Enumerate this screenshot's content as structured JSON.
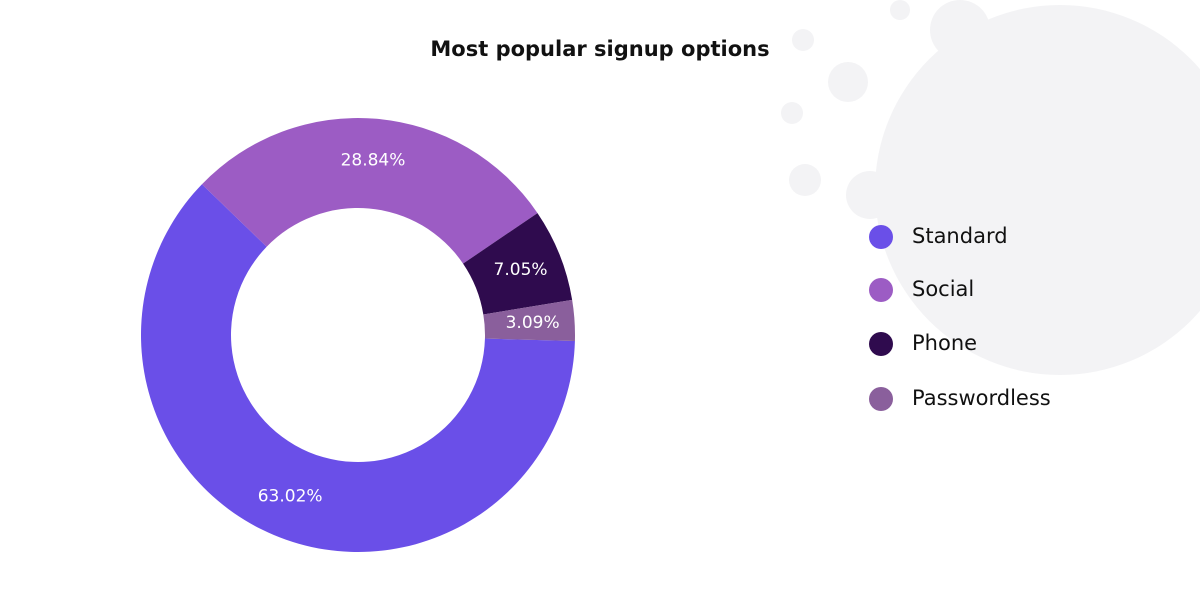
{
  "chart_data": {
    "type": "donut",
    "title": "Most popular signup options",
    "categories": [
      "Standard",
      "Social",
      "Phone",
      "Passwordless"
    ],
    "values": [
      63.02,
      28.84,
      7.05,
      3.09
    ],
    "value_labels": [
      "63.02%",
      "28.84%",
      "7.05%",
      "3.09%"
    ],
    "colors": [
      "#6a4fe8",
      "#9c5cc4",
      "#2f0b4e",
      "#8a5f9c"
    ],
    "legend": "right"
  }
}
